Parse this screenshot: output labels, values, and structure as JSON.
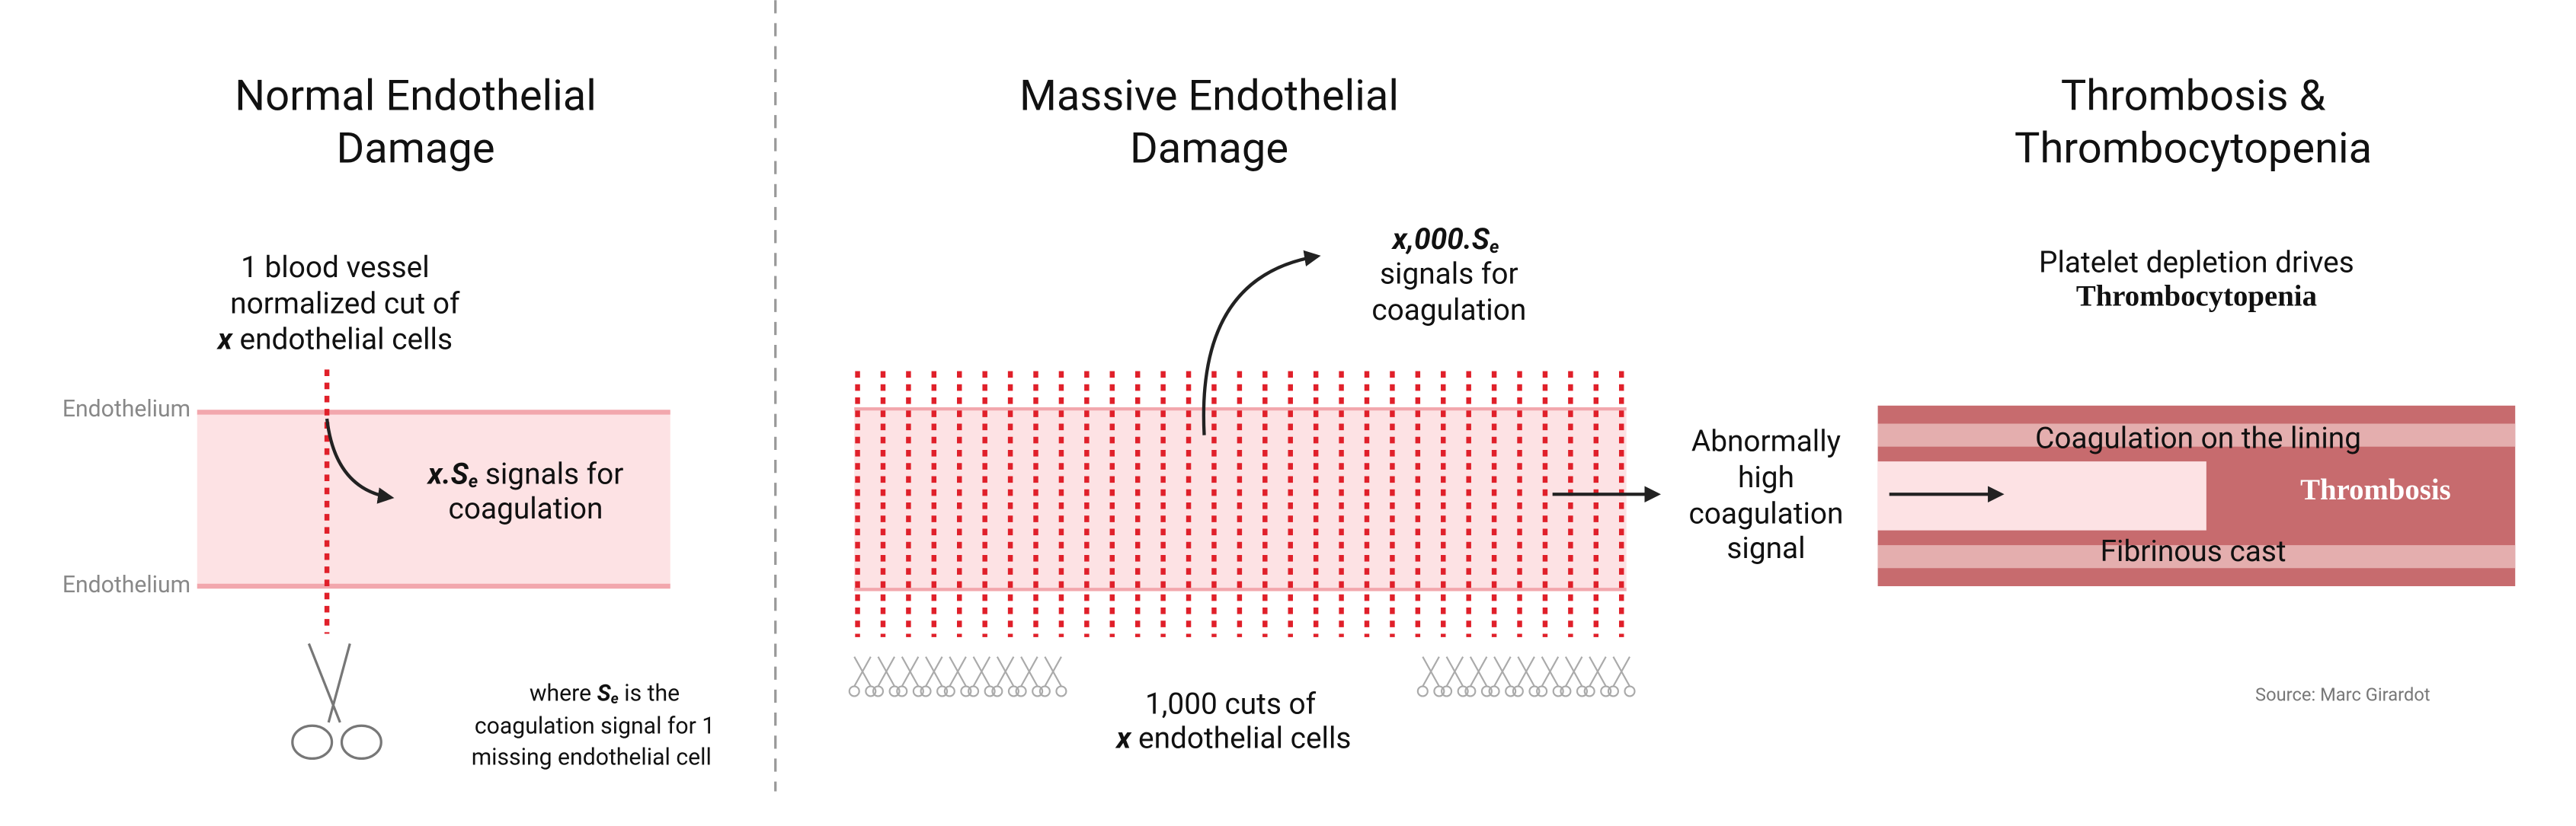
{
  "panels": [
    {
      "title": [
        "Normal Endothelial",
        "Damage"
      ],
      "cut_label": [
        "1 blood vessel",
        "normalized cut of",
        "x",
        " endothelial cells"
      ],
      "layer_labels": [
        "Endothelium",
        "Endothelium"
      ],
      "signal_label": [
        "x.S",
        "e",
        " signals for",
        "coagulation"
      ],
      "footnote": [
        "where ",
        "S",
        "e",
        " is the",
        "coagulation signal for 1",
        "missing endothelial cell"
      ]
    },
    {
      "title": [
        "Massive Endothelial",
        "Damage"
      ],
      "signal_label": [
        "x,000.S",
        "e",
        "signals for",
        "coagulation"
      ],
      "cut_label": [
        "1,000 cuts of",
        "x",
        " endothelial cells"
      ],
      "arrow_label": [
        "Abnormally",
        "high",
        "coagulation",
        "signal"
      ]
    },
    {
      "title": [
        "Thrombosis &",
        "Thrombocytopenia"
      ],
      "caption": [
        "Platelet depletion drives",
        "Thrombocytopenia"
      ],
      "vessel_labels": [
        "Coagulation on the lining",
        "Thrombosis",
        "Fibrinous cast"
      ],
      "source": "Source: Marc Girardot"
    }
  ]
}
